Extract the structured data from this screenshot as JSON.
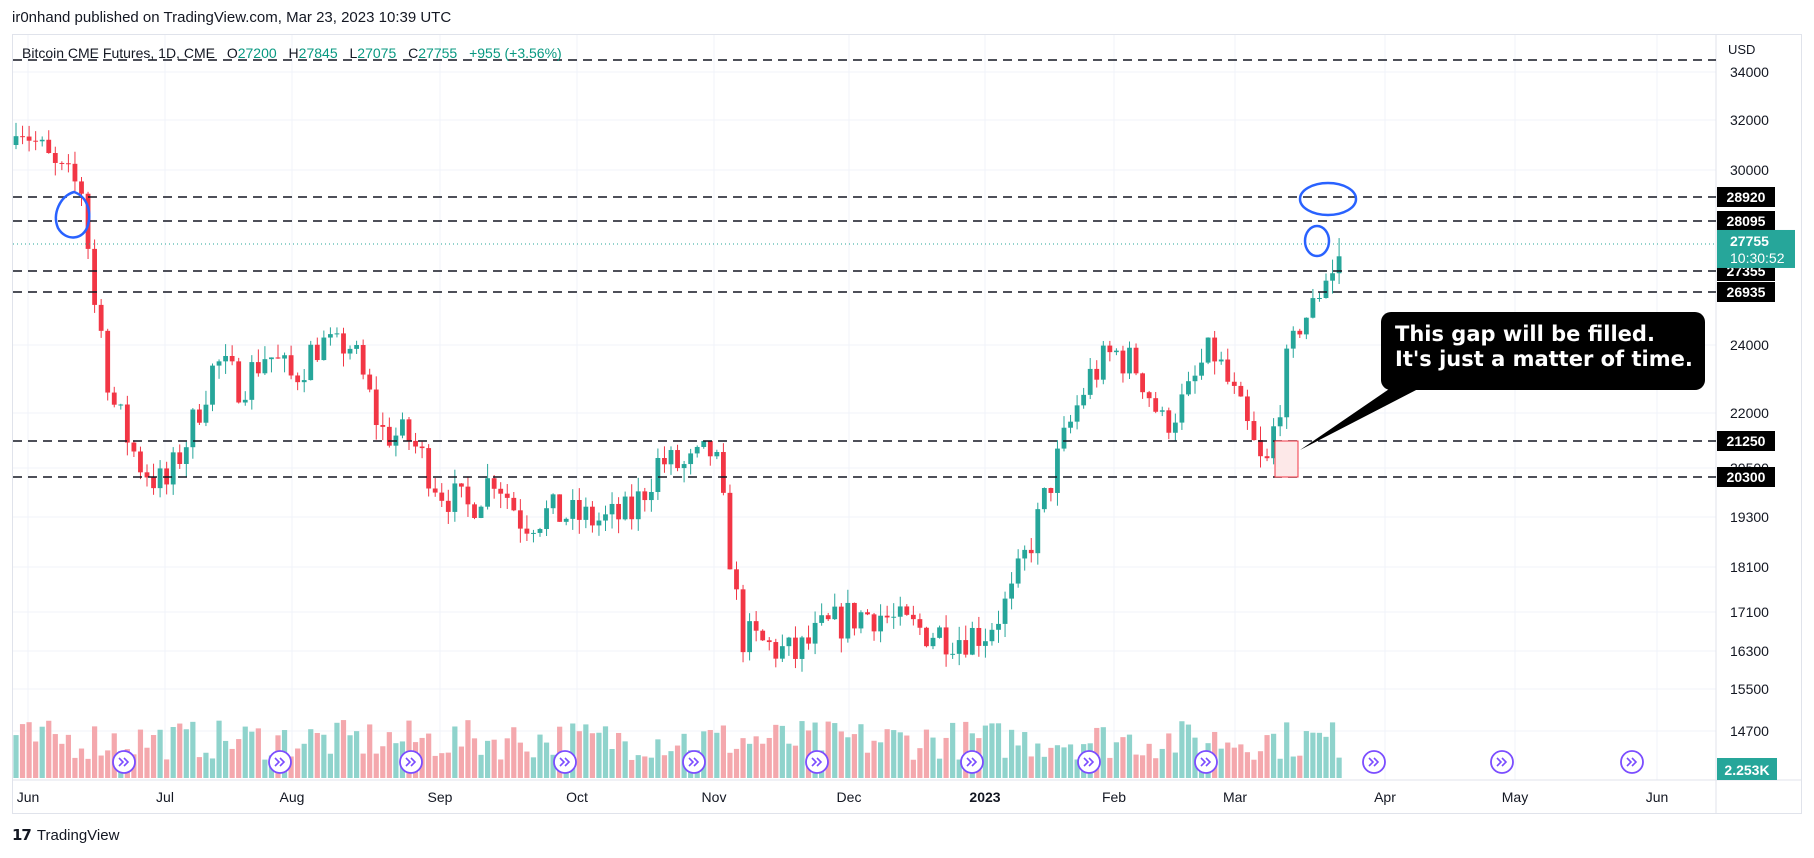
{
  "header": {
    "publisher": "ir0nhand published on TradingView.com, Mar 23, 2023 10:39 UTC"
  },
  "legend": {
    "symbol": "Bitcoin CME Futures, 1D, CME",
    "open_label": "O",
    "open": "27200",
    "high_label": "H",
    "high": "27845",
    "low_label": "L",
    "low": "27075",
    "close_label": "C",
    "close": "27755",
    "change": "+955 (+3.56%)"
  },
  "price_axis": {
    "currency": "USD",
    "current_price": "27755",
    "countdown": "10:30:52",
    "volume_badge": "2.253K"
  },
  "callout": {
    "line1": "This gap will be filled.",
    "line2": "It's just a matter of time."
  },
  "footer": {
    "brand": "TradingView"
  },
  "colors": {
    "up": "#26a69a",
    "down": "#f23645",
    "volume_up": "#8fd3cc",
    "volume_down": "#f4a8ad",
    "annotation_circle": "#2962ff",
    "level_line": "#131722",
    "dividend_marker": "#7b4dff"
  },
  "chart_data": {
    "type": "candlestick",
    "title": "Bitcoin CME Futures, 1D, CME",
    "ylabel": "USD",
    "y_ticks": [
      34000,
      32000,
      30000,
      24000,
      22000,
      20500,
      19300,
      18100,
      17100,
      16300,
      15500,
      14700
    ],
    "x_ticks": [
      "Jun",
      "Jul",
      "Aug",
      "Sep",
      "Oct",
      "Nov",
      "Dec",
      "2023",
      "Feb",
      "Mar",
      "Apr",
      "May",
      "Jun"
    ],
    "horizontal_levels": [
      34500,
      28920,
      28095,
      27355,
      26935,
      21250,
      20300
    ],
    "level_labels": [
      "28920",
      "28095",
      "27355",
      "26935",
      "21250",
      "20300"
    ],
    "last_price": 27755,
    "gap_box": {
      "low": 20300,
      "high": 21250,
      "month": "Mar"
    },
    "approx_closes_by_month": {
      "Jun": [
        31500,
        30000,
        29200,
        22500,
        20700
      ],
      "Jul": [
        20000,
        21500,
        23500,
        22800,
        23800
      ],
      "Aug": [
        23000,
        24200,
        24000,
        21500,
        21300
      ],
      "Sep": [
        20000,
        19500,
        20400,
        19200,
        19400
      ],
      "Oct": [
        19300,
        19200,
        19400,
        20700,
        20500
      ],
      "Nov": [
        21000,
        16600,
        16400,
        16200,
        16700
      ],
      "Dec": [
        17000,
        17100,
        16800,
        16700,
        16600
      ],
      "Jan": [
        16700,
        17400,
        19100,
        21100,
        23000
      ],
      "Feb": [
        23800,
        23300,
        21700,
        22400,
        24000
      ],
      "Mar": [
        22400,
        20300,
        24500,
        27400,
        27755
      ]
    }
  }
}
